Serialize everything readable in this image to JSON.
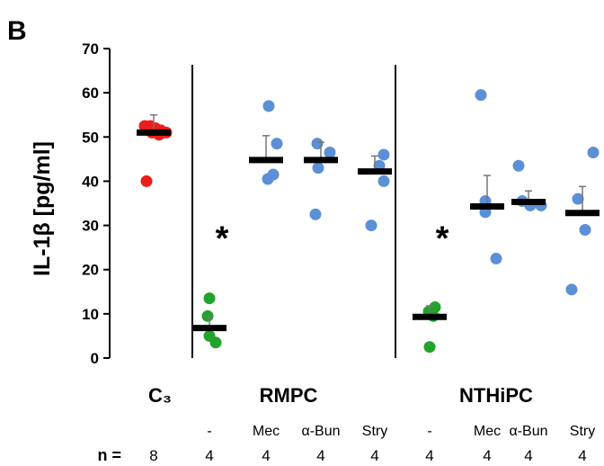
{
  "panel_label": "B",
  "chart_data": {
    "type": "scatter",
    "ylabel": "IL-1β [pg/ml]",
    "ylim": [
      0,
      70
    ],
    "yticks": [
      0,
      10,
      20,
      30,
      40,
      50,
      60,
      70
    ],
    "grid": false,
    "groups": [
      {
        "name": "C₃",
        "subgroups": [
          {
            "label": "",
            "n": "8",
            "color": "#ee1c1c",
            "mean": 51,
            "error": 4,
            "points": [
              52.5,
              52.5,
              52,
              51.5,
              51,
              51,
              50.5,
              40
            ],
            "significant": false
          }
        ]
      },
      {
        "name": "RMPC",
        "subgroups": [
          {
            "label": "-",
            "n": "4",
            "color": "#22a32b",
            "mean": 6.8,
            "error": 2.5,
            "points": [
              13.5,
              9.5,
              5,
              3.5
            ],
            "significant": true
          },
          {
            "label": "Mec",
            "n": "4",
            "color": "#5b8fd6",
            "mean": 44.8,
            "error": 5.5,
            "points": [
              57,
              48.5,
              41.5,
              40.5
            ],
            "significant": false
          },
          {
            "label": "α-Bun",
            "n": "4",
            "color": "#5b8fd6",
            "mean": 44.8,
            "error": 4,
            "points": [
              48.5,
              46.5,
              43,
              32.5
            ],
            "significant": false
          },
          {
            "label": "Stry",
            "n": "4",
            "color": "#5b8fd6",
            "mean": 42.2,
            "error": 3.5,
            "points": [
              46,
              43.5,
              40,
              30
            ],
            "significant": false
          }
        ]
      },
      {
        "name": "NTHiPC",
        "subgroups": [
          {
            "label": "-",
            "n": "4",
            "color": "#22a32b",
            "mean": 9.3,
            "error": 2.5,
            "points": [
              11.5,
              10.5,
              9.5,
              2.5
            ],
            "significant": true
          },
          {
            "label": "Mec",
            "n": "4",
            "color": "#5b8fd6",
            "mean": 34.3,
            "error": 7,
            "points": [
              59.5,
              35.5,
              33,
              22.5
            ],
            "significant": false
          },
          {
            "label": "α-Bun",
            "n": "4",
            "color": "#5b8fd6",
            "mean": 35.3,
            "error": 2.5,
            "points": [
              43.5,
              35.5,
              34.5,
              34.5
            ],
            "significant": false
          },
          {
            "label": "Stry",
            "n": "4",
            "color": "#5b8fd6",
            "mean": 32.8,
            "error": 6,
            "points": [
              46.5,
              36,
              29,
              15.5
            ],
            "significant": false
          }
        ]
      }
    ],
    "significance_marker": "*",
    "n_label": "n ="
  }
}
